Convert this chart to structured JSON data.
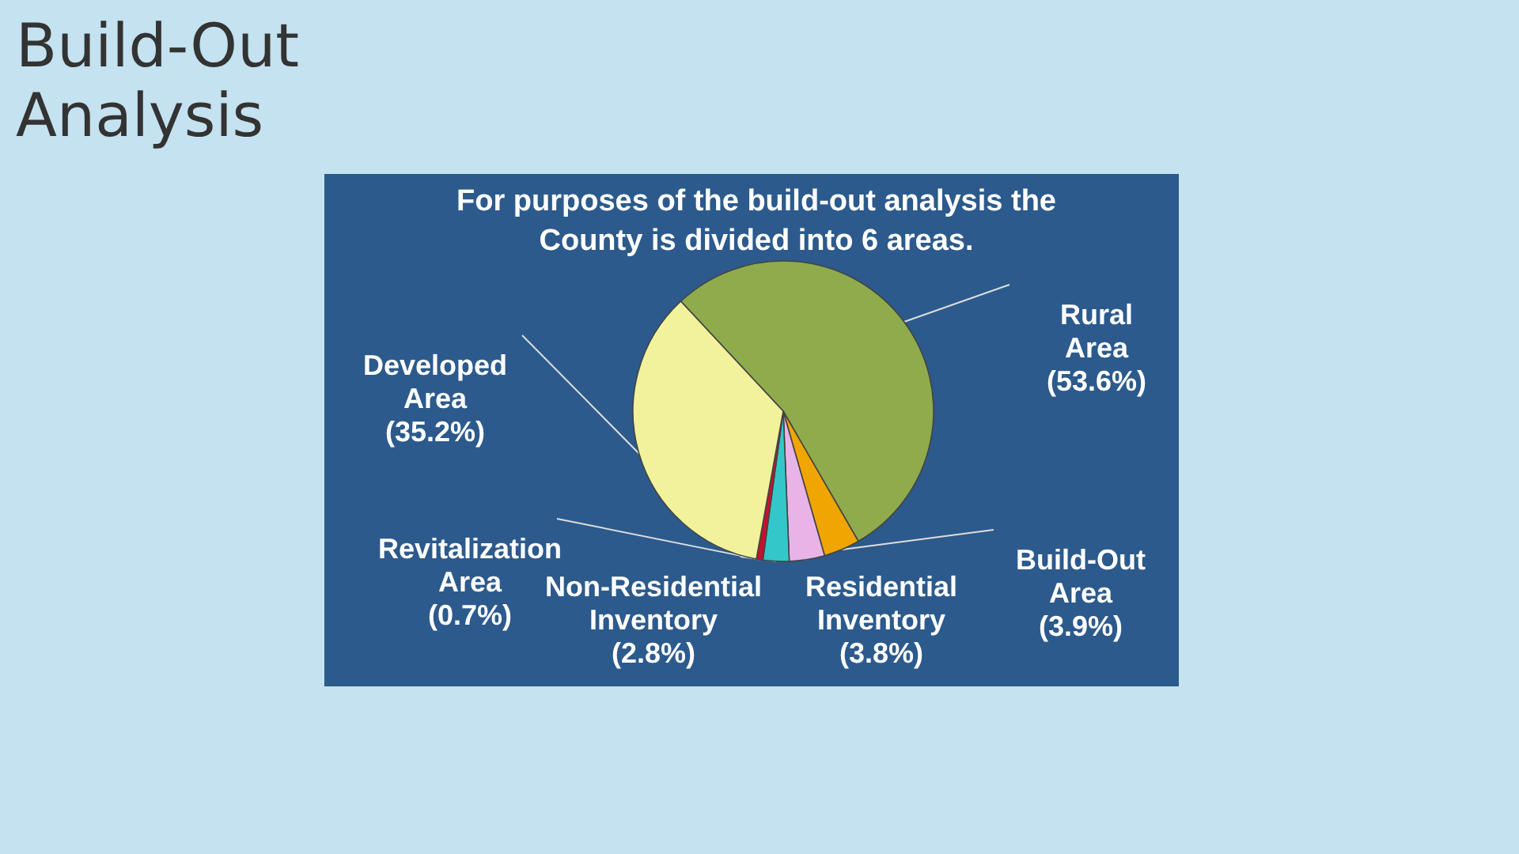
{
  "chart_data": {
    "type": "pie",
    "title": "Build-Out Analysis",
    "subtitle": "For purposes of the build-out analysis the County is divided into 6 areas.",
    "categories": [
      "Rural Area",
      "Build-Out Area",
      "Residential Inventory",
      "Non-Residential Inventory",
      "Revitalization Area",
      "Developed Area"
    ],
    "values": [
      53.6,
      3.9,
      3.8,
      2.8,
      0.7,
      35.2
    ],
    "value_labels": [
      "(53.6%)",
      "(3.9%)",
      "(3.8%)",
      "(2.8%)",
      "(0.7%)",
      "(35.2%)"
    ],
    "colors": [
      "#8fab4c",
      "#f0a500",
      "#e8b4e8",
      "#33c7c9",
      "#c8102e",
      "#f2f29c"
    ],
    "legend": false
  }
}
